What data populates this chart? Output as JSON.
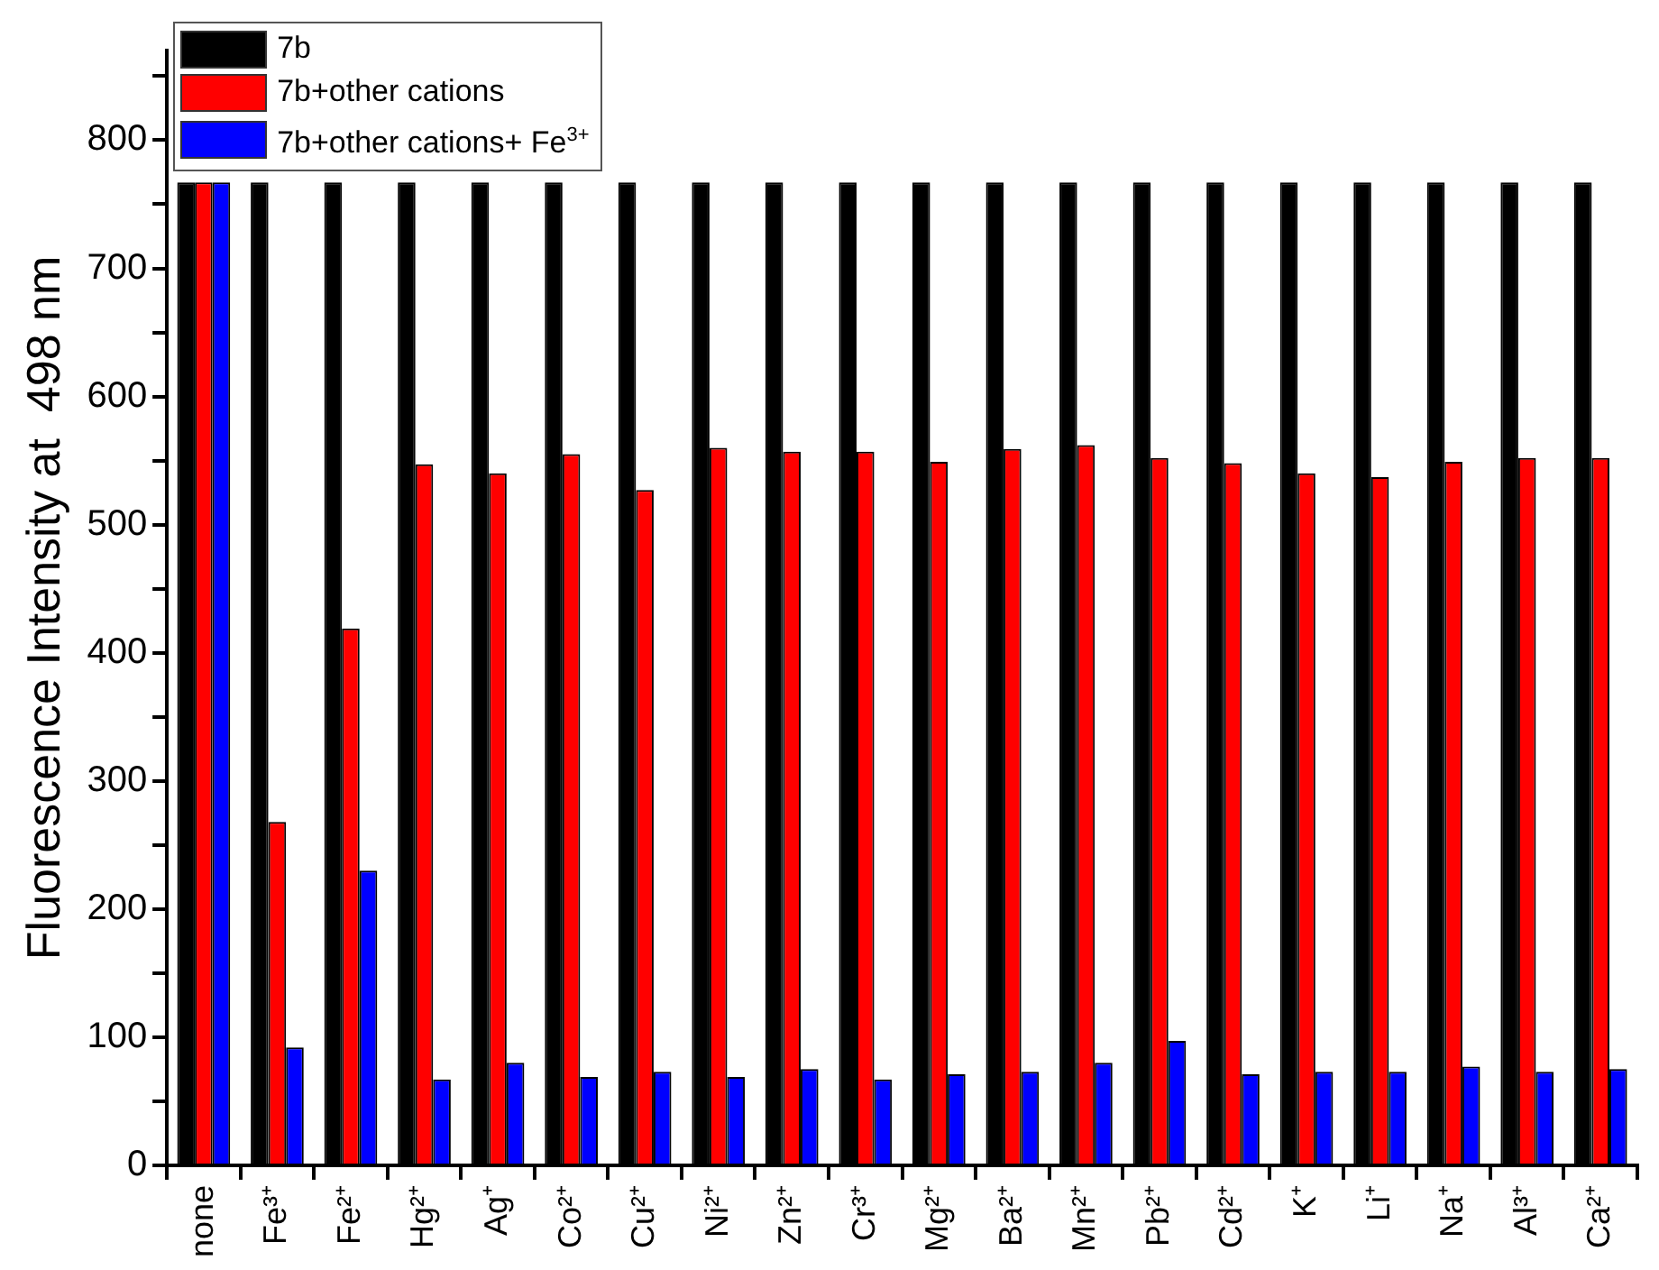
{
  "chart_data": {
    "type": "bar",
    "ylabel": "Fluorescence Intensity at  498 nm",
    "categories": [
      "none",
      "Fe³⁺",
      "Fe²⁺",
      "Hg²⁺",
      "Ag⁺",
      "Co²⁺",
      "Cu²⁺",
      "Ni²⁺",
      "Zn²⁺",
      "Cr³⁺",
      "Mg²⁺",
      "Ba²⁺",
      "Mn²⁺",
      "Pb²⁺",
      "Cd²⁺",
      "K⁺",
      "Li⁺",
      "Na⁺",
      "Al³⁺",
      "Ca²⁺"
    ],
    "series": [
      {
        "name": "7b",
        "color": "#000000",
        "values": [
          767,
          767,
          767,
          767,
          767,
          767,
          767,
          767,
          767,
          767,
          767,
          767,
          767,
          767,
          767,
          767,
          767,
          767,
          767,
          767
        ]
      },
      {
        "name": "7b+other cations",
        "color": "#ff0000",
        "values": [
          767,
          268,
          419,
          547,
          540,
          555,
          527,
          560,
          557,
          557,
          549,
          559,
          562,
          552,
          548,
          540,
          537,
          549,
          552,
          552
        ]
      },
      {
        "name": "7b+other cations+ Fe$^{3+}$",
        "color": "#0000ff",
        "values": [
          767,
          92,
          230,
          67,
          80,
          69,
          73,
          69,
          75,
          67,
          71,
          73,
          80,
          97,
          71,
          73,
          73,
          77,
          73,
          75
        ]
      }
    ],
    "ylim": [
      0,
      870
    ],
    "yticks": [
      0,
      {
        "value": 50,
        "label": null
      },
      100,
      {
        "value": 150,
        "label": null
      },
      200,
      {
        "value": 250,
        "label": null
      },
      300,
      {
        "value": 350,
        "label": null
      },
      400,
      {
        "value": 450,
        "label": null
      },
      500,
      {
        "value": 550,
        "label": null
      },
      600,
      {
        "value": 650,
        "label": null
      },
      700,
      {
        "value": 750,
        "label": null
      },
      800,
      {
        "value": 850,
        "label": null
      }
    ],
    "grid": false,
    "legend": "top left"
  }
}
